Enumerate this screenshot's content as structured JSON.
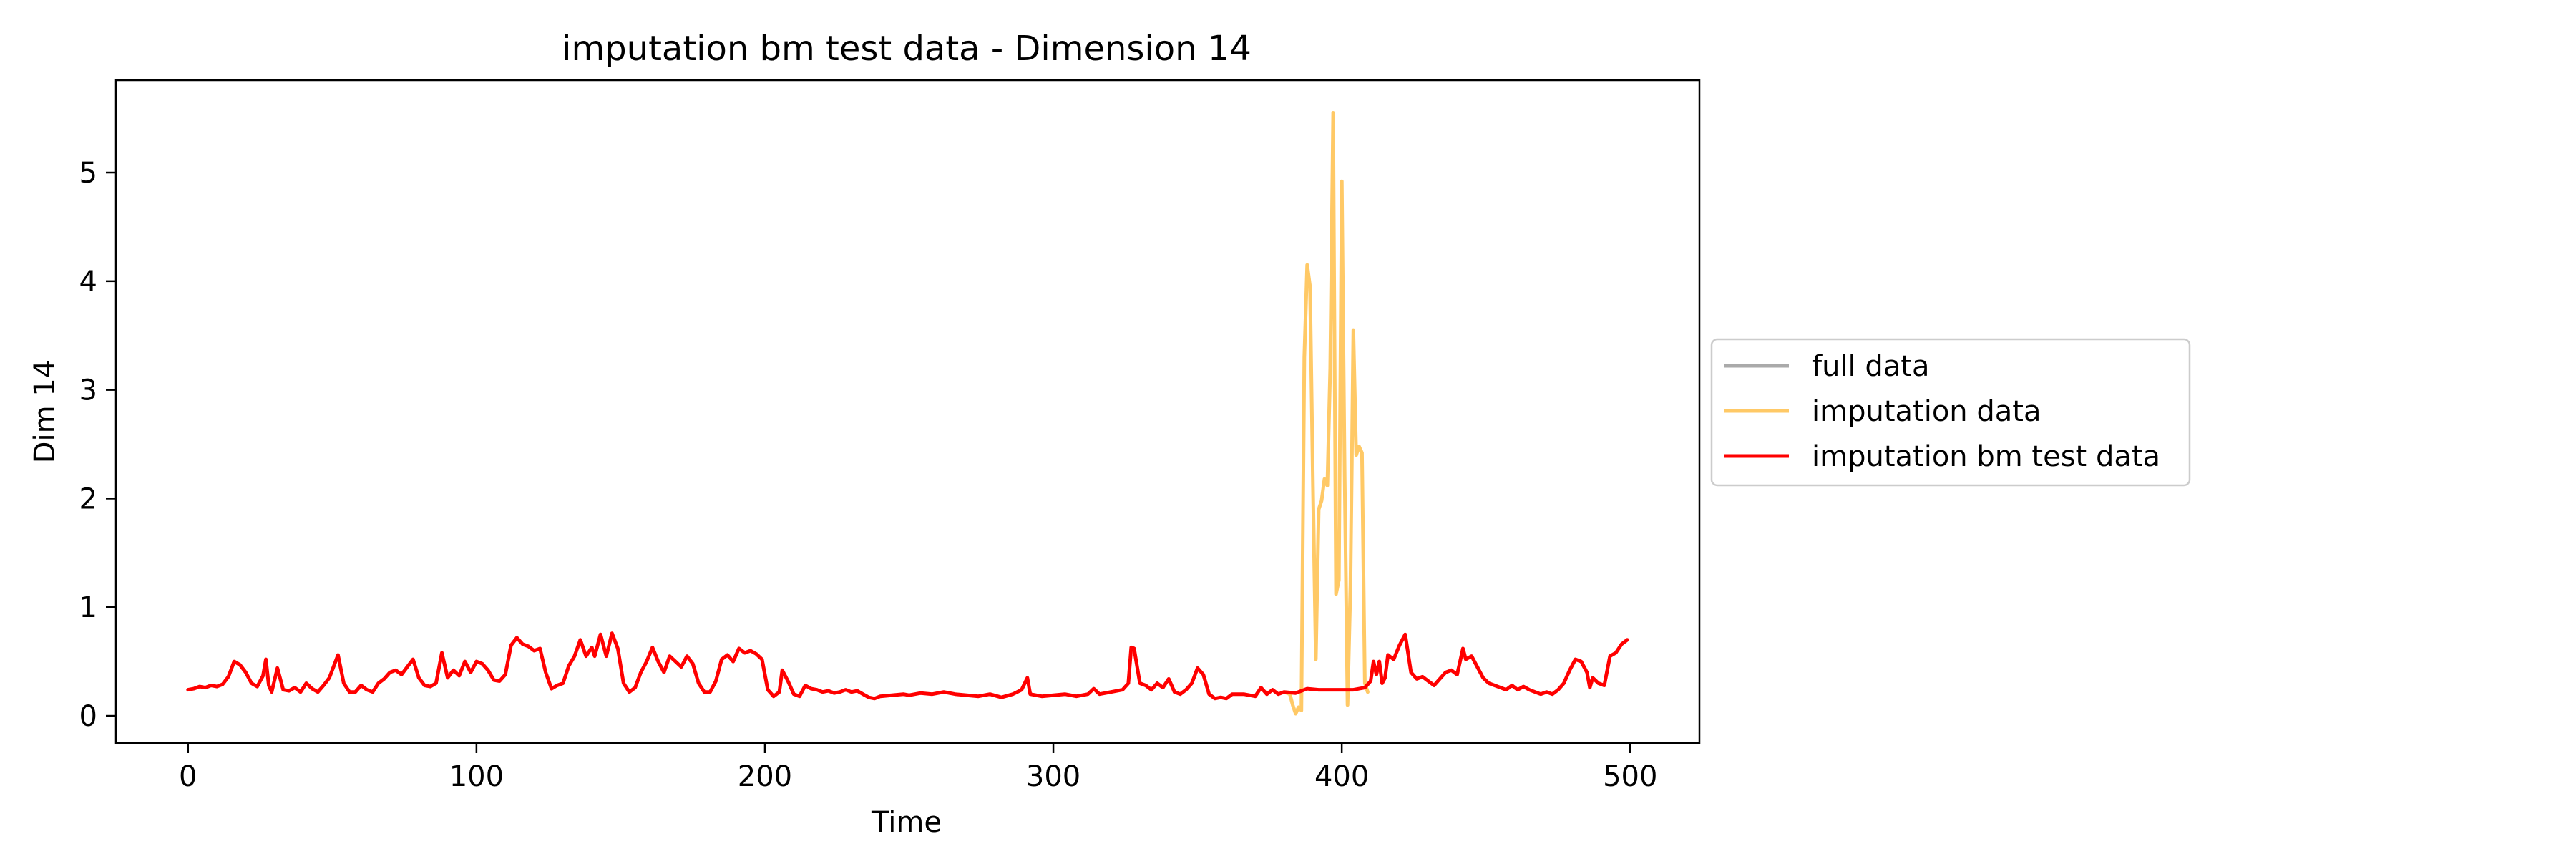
{
  "chart_data": {
    "type": "line",
    "title": "imputation bm test data - Dimension 14",
    "xlabel": "Time",
    "ylabel": "Dim 14",
    "xlim": [
      -25,
      524
    ],
    "ylim": [
      -0.25,
      5.85
    ],
    "xticks": [
      0,
      100,
      200,
      300,
      400,
      500
    ],
    "yticks": [
      0,
      1,
      2,
      3,
      4,
      5
    ],
    "grid": false,
    "legend": {
      "placement": "outside-right",
      "entries": [
        "full data",
        "imputation data",
        "imputation bm test data"
      ]
    },
    "series": [
      {
        "name": "full data",
        "color": "#aaaaaa",
        "points": []
      },
      {
        "name": "imputation data",
        "color": "#ffc966",
        "points": [
          [
            380,
            0.22
          ],
          [
            382,
            0.2
          ],
          [
            383,
            0.1
          ],
          [
            384,
            0.02
          ],
          [
            385,
            0.08
          ],
          [
            386,
            0.05
          ],
          [
            387,
            3.3
          ],
          [
            388,
            4.15
          ],
          [
            389,
            3.95
          ],
          [
            390,
            2.1
          ],
          [
            391,
            0.52
          ],
          [
            392,
            1.9
          ],
          [
            393,
            1.98
          ],
          [
            394,
            2.18
          ],
          [
            395,
            2.12
          ],
          [
            396,
            3.2
          ],
          [
            397,
            5.55
          ],
          [
            398,
            1.12
          ],
          [
            399,
            1.25
          ],
          [
            400,
            4.92
          ],
          [
            401,
            2.2
          ],
          [
            402,
            0.1
          ],
          [
            403,
            1.2
          ],
          [
            404,
            3.55
          ],
          [
            405,
            2.4
          ],
          [
            406,
            2.48
          ],
          [
            407,
            2.42
          ],
          [
            408,
            0.3
          ],
          [
            409,
            0.22
          ]
        ]
      },
      {
        "name": "imputation bm test data",
        "color": "#ff0000",
        "points": [
          [
            0,
            0.24
          ],
          [
            2,
            0.25
          ],
          [
            4,
            0.27
          ],
          [
            6,
            0.26
          ],
          [
            8,
            0.28
          ],
          [
            10,
            0.27
          ],
          [
            12,
            0.29
          ],
          [
            14,
            0.36
          ],
          [
            16,
            0.5
          ],
          [
            18,
            0.47
          ],
          [
            20,
            0.4
          ],
          [
            22,
            0.3
          ],
          [
            24,
            0.27
          ],
          [
            26,
            0.37
          ],
          [
            27,
            0.52
          ],
          [
            28,
            0.28
          ],
          [
            29,
            0.22
          ],
          [
            31,
            0.44
          ],
          [
            33,
            0.24
          ],
          [
            35,
            0.23
          ],
          [
            37,
            0.26
          ],
          [
            39,
            0.22
          ],
          [
            41,
            0.3
          ],
          [
            43,
            0.25
          ],
          [
            45,
            0.22
          ],
          [
            47,
            0.28
          ],
          [
            49,
            0.35
          ],
          [
            52,
            0.56
          ],
          [
            54,
            0.3
          ],
          [
            56,
            0.22
          ],
          [
            58,
            0.22
          ],
          [
            60,
            0.28
          ],
          [
            62,
            0.24
          ],
          [
            64,
            0.22
          ],
          [
            66,
            0.3
          ],
          [
            68,
            0.34
          ],
          [
            70,
            0.4
          ],
          [
            72,
            0.42
          ],
          [
            74,
            0.38
          ],
          [
            76,
            0.45
          ],
          [
            78,
            0.52
          ],
          [
            80,
            0.35
          ],
          [
            82,
            0.28
          ],
          [
            84,
            0.27
          ],
          [
            86,
            0.3
          ],
          [
            88,
            0.58
          ],
          [
            90,
            0.35
          ],
          [
            92,
            0.42
          ],
          [
            94,
            0.37
          ],
          [
            96,
            0.5
          ],
          [
            98,
            0.4
          ],
          [
            100,
            0.5
          ],
          [
            102,
            0.48
          ],
          [
            104,
            0.42
          ],
          [
            106,
            0.33
          ],
          [
            108,
            0.32
          ],
          [
            110,
            0.38
          ],
          [
            112,
            0.65
          ],
          [
            114,
            0.72
          ],
          [
            116,
            0.66
          ],
          [
            118,
            0.64
          ],
          [
            120,
            0.6
          ],
          [
            122,
            0.62
          ],
          [
            124,
            0.4
          ],
          [
            126,
            0.25
          ],
          [
            128,
            0.28
          ],
          [
            130,
            0.3
          ],
          [
            132,
            0.46
          ],
          [
            134,
            0.55
          ],
          [
            136,
            0.7
          ],
          [
            138,
            0.55
          ],
          [
            140,
            0.63
          ],
          [
            141,
            0.55
          ],
          [
            143,
            0.75
          ],
          [
            145,
            0.55
          ],
          [
            147,
            0.76
          ],
          [
            149,
            0.62
          ],
          [
            151,
            0.3
          ],
          [
            153,
            0.22
          ],
          [
            155,
            0.26
          ],
          [
            157,
            0.4
          ],
          [
            159,
            0.5
          ],
          [
            161,
            0.63
          ],
          [
            163,
            0.5
          ],
          [
            165,
            0.4
          ],
          [
            167,
            0.55
          ],
          [
            169,
            0.5
          ],
          [
            171,
            0.45
          ],
          [
            173,
            0.55
          ],
          [
            175,
            0.48
          ],
          [
            177,
            0.3
          ],
          [
            179,
            0.22
          ],
          [
            181,
            0.22
          ],
          [
            183,
            0.32
          ],
          [
            185,
            0.52
          ],
          [
            187,
            0.56
          ],
          [
            189,
            0.5
          ],
          [
            191,
            0.62
          ],
          [
            193,
            0.58
          ],
          [
            195,
            0.6
          ],
          [
            197,
            0.57
          ],
          [
            199,
            0.52
          ],
          [
            201,
            0.24
          ],
          [
            203,
            0.18
          ],
          [
            205,
            0.22
          ],
          [
            206,
            0.42
          ],
          [
            208,
            0.32
          ],
          [
            210,
            0.2
          ],
          [
            212,
            0.18
          ],
          [
            214,
            0.28
          ],
          [
            216,
            0.25
          ],
          [
            218,
            0.24
          ],
          [
            220,
            0.22
          ],
          [
            222,
            0.23
          ],
          [
            224,
            0.21
          ],
          [
            226,
            0.22
          ],
          [
            228,
            0.24
          ],
          [
            230,
            0.22
          ],
          [
            232,
            0.23
          ],
          [
            234,
            0.2
          ],
          [
            236,
            0.17
          ],
          [
            238,
            0.16
          ],
          [
            240,
            0.18
          ],
          [
            244,
            0.19
          ],
          [
            248,
            0.2
          ],
          [
            250,
            0.19
          ],
          [
            254,
            0.21
          ],
          [
            258,
            0.2
          ],
          [
            262,
            0.22
          ],
          [
            266,
            0.2
          ],
          [
            270,
            0.19
          ],
          [
            274,
            0.18
          ],
          [
            278,
            0.2
          ],
          [
            282,
            0.17
          ],
          [
            286,
            0.2
          ],
          [
            289,
            0.24
          ],
          [
            291,
            0.35
          ],
          [
            292,
            0.2
          ],
          [
            296,
            0.18
          ],
          [
            300,
            0.19
          ],
          [
            304,
            0.2
          ],
          [
            308,
            0.18
          ],
          [
            312,
            0.2
          ],
          [
            314,
            0.25
          ],
          [
            316,
            0.2
          ],
          [
            320,
            0.22
          ],
          [
            324,
            0.24
          ],
          [
            326,
            0.3
          ],
          [
            327,
            0.63
          ],
          [
            328,
            0.62
          ],
          [
            330,
            0.3
          ],
          [
            332,
            0.28
          ],
          [
            334,
            0.24
          ],
          [
            336,
            0.3
          ],
          [
            338,
            0.26
          ],
          [
            340,
            0.34
          ],
          [
            342,
            0.22
          ],
          [
            344,
            0.2
          ],
          [
            346,
            0.24
          ],
          [
            348,
            0.3
          ],
          [
            350,
            0.44
          ],
          [
            352,
            0.38
          ],
          [
            354,
            0.2
          ],
          [
            356,
            0.16
          ],
          [
            358,
            0.17
          ],
          [
            360,
            0.16
          ],
          [
            362,
            0.2
          ],
          [
            366,
            0.2
          ],
          [
            370,
            0.18
          ],
          [
            372,
            0.26
          ],
          [
            374,
            0.2
          ],
          [
            376,
            0.24
          ],
          [
            378,
            0.2
          ],
          [
            380,
            0.22
          ],
          [
            384,
            0.21
          ],
          [
            388,
            0.25
          ],
          [
            392,
            0.24
          ],
          [
            396,
            0.24
          ],
          [
            400,
            0.24
          ],
          [
            404,
            0.24
          ],
          [
            408,
            0.26
          ],
          [
            410,
            0.32
          ],
          [
            411,
            0.5
          ],
          [
            412,
            0.38
          ],
          [
            413,
            0.5
          ],
          [
            414,
            0.3
          ],
          [
            415,
            0.35
          ],
          [
            416,
            0.56
          ],
          [
            418,
            0.52
          ],
          [
            420,
            0.65
          ],
          [
            422,
            0.75
          ],
          [
            424,
            0.4
          ],
          [
            426,
            0.34
          ],
          [
            428,
            0.36
          ],
          [
            430,
            0.32
          ],
          [
            432,
            0.28
          ],
          [
            434,
            0.34
          ],
          [
            436,
            0.4
          ],
          [
            438,
            0.42
          ],
          [
            440,
            0.38
          ],
          [
            442,
            0.62
          ],
          [
            443,
            0.52
          ],
          [
            445,
            0.55
          ],
          [
            447,
            0.45
          ],
          [
            449,
            0.35
          ],
          [
            451,
            0.3
          ],
          [
            453,
            0.28
          ],
          [
            455,
            0.26
          ],
          [
            457,
            0.24
          ],
          [
            459,
            0.28
          ],
          [
            461,
            0.24
          ],
          [
            463,
            0.27
          ],
          [
            465,
            0.24
          ],
          [
            467,
            0.22
          ],
          [
            469,
            0.2
          ],
          [
            471,
            0.22
          ],
          [
            473,
            0.2
          ],
          [
            475,
            0.24
          ],
          [
            477,
            0.3
          ],
          [
            479,
            0.42
          ],
          [
            481,
            0.52
          ],
          [
            483,
            0.5
          ],
          [
            485,
            0.4
          ],
          [
            486,
            0.26
          ],
          [
            487,
            0.35
          ],
          [
            489,
            0.3
          ],
          [
            491,
            0.28
          ],
          [
            493,
            0.55
          ],
          [
            495,
            0.58
          ],
          [
            497,
            0.66
          ],
          [
            499,
            0.7
          ]
        ]
      }
    ]
  }
}
